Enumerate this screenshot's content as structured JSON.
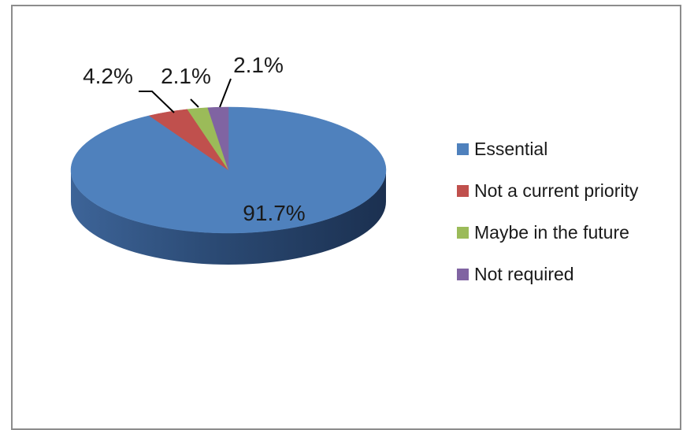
{
  "chart_data": {
    "type": "pie",
    "style": "3d",
    "categories": [
      "Essential",
      "Not a current priority",
      "Maybe in the future",
      "Not required"
    ],
    "values": [
      91.7,
      4.2,
      2.1,
      2.1
    ],
    "data_labels": [
      "91.7%",
      "4.2%",
      "2.1%",
      "2.1%"
    ],
    "colors": [
      "#4f81bd",
      "#c0504d",
      "#9bbb59",
      "#8064a2"
    ],
    "title": "",
    "legend_position": "right"
  }
}
